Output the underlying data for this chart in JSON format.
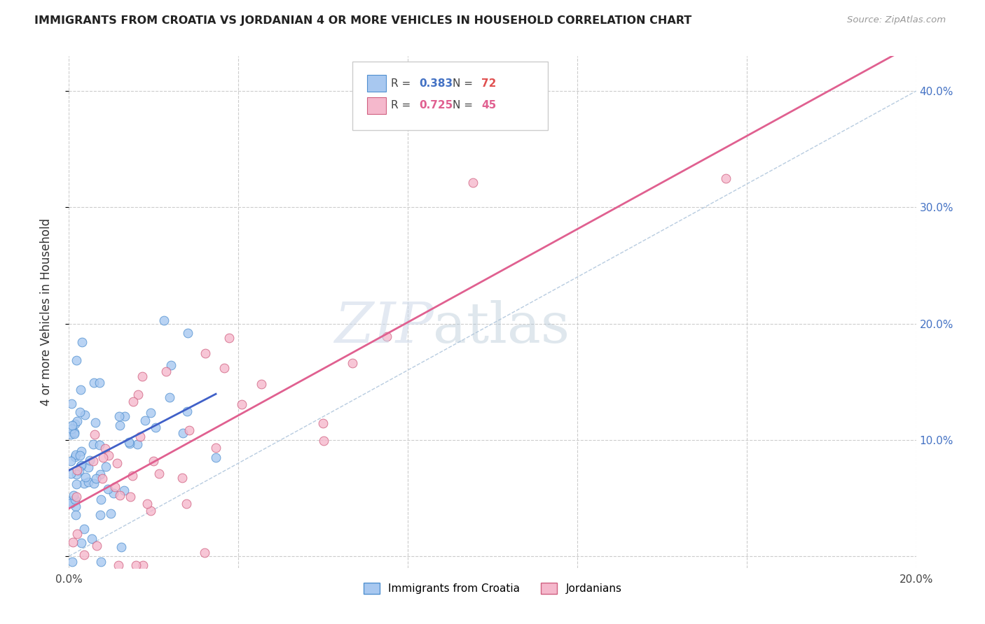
{
  "title": "IMMIGRANTS FROM CROATIA VS JORDANIAN 4 OR MORE VEHICLES IN HOUSEHOLD CORRELATION CHART",
  "source": "Source: ZipAtlas.com",
  "ylabel": "4 or more Vehicles in Household",
  "xlim": [
    0.0,
    0.2
  ],
  "ylim": [
    -0.01,
    0.43
  ],
  "xticks": [
    0.0,
    0.04,
    0.08,
    0.12,
    0.16,
    0.2
  ],
  "xtick_labels": [
    "0.0%",
    "",
    "",
    "",
    "",
    "20.0%"
  ],
  "yticks": [
    0.0,
    0.1,
    0.2,
    0.3,
    0.4
  ],
  "ytick_labels_right": [
    "",
    "10.0%",
    "20.0%",
    "30.0%",
    "40.0%"
  ],
  "croatia_color": "#a8c8f0",
  "croatia_edge_color": "#5090d0",
  "jordan_color": "#f5b8cc",
  "jordan_edge_color": "#d06080",
  "croatia_line_color": "#4060c8",
  "jordan_line_color": "#e06090",
  "diagonal_color": "#b8cce0",
  "background_color": "#ffffff",
  "grid_color": "#cccccc",
  "croatia_seed": 42,
  "jordan_seed": 7
}
